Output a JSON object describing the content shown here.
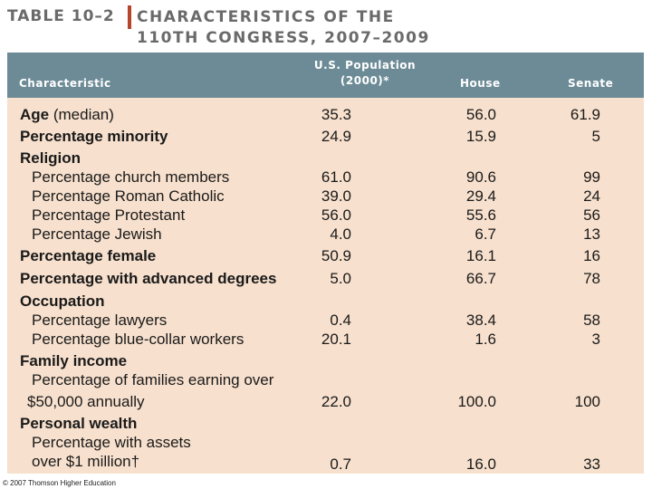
{
  "title": {
    "table_label": "TABLE 10–2",
    "line1": "CHARACTERISTICS OF THE",
    "line2": "110TH CONGRESS, 2007–2009"
  },
  "columns": {
    "characteristic": "Characteristic",
    "population_line1": "U.S. Population",
    "population_line2": "(2000)*",
    "house": "House",
    "senate": "Senate"
  },
  "rows": [
    {
      "label": "Age (median)",
      "bold": "Age",
      "rest": " (median)",
      "pop": "35.3",
      "house": "56.0",
      "senate": "61.9"
    },
    {
      "label": "Percentage minority",
      "pop": "24.9",
      "house": "15.9",
      "senate": "5"
    },
    {
      "label": "Religion"
    },
    {
      "label": "Percentage church members",
      "pop": "61.0",
      "house": "90.6",
      "senate": "99"
    },
    {
      "label": "Percentage Roman Catholic",
      "pop": "39.0",
      "house": "29.4",
      "senate": "24"
    },
    {
      "label": "Percentage Protestant",
      "pop": "56.0",
      "house": "55.6",
      "senate": "56"
    },
    {
      "label": "Percentage Jewish",
      "pop": "4.0",
      "house": "6.7",
      "senate": "13"
    },
    {
      "label": "Percentage female",
      "pop": "50.9",
      "house": "16.1",
      "senate": "16"
    },
    {
      "label": "Percentage with advanced degrees",
      "pop": "5.0",
      "house": "66.7",
      "senate": "78"
    },
    {
      "label": "Occupation"
    },
    {
      "label": "Percentage lawyers",
      "pop": "0.4",
      "house": "38.4",
      "senate": "58"
    },
    {
      "label": "Percentage blue-collar workers",
      "pop": "20.1",
      "house": "1.6",
      "senate": "3"
    },
    {
      "label": "Family income"
    },
    {
      "label_line1": "Percentage of families earning over",
      "label_line2": "$50,000 annually",
      "pop": "22.0",
      "house": "100.0",
      "senate": "100"
    },
    {
      "label": "Personal wealth"
    },
    {
      "label_line1": "Percentage with assets",
      "label_line2": "over $1 million†",
      "pop": "0.7",
      "house": "16.0",
      "senate": "33"
    }
  ],
  "footer": {
    "copyright": "© 2007 Thomson Higher Education"
  }
}
